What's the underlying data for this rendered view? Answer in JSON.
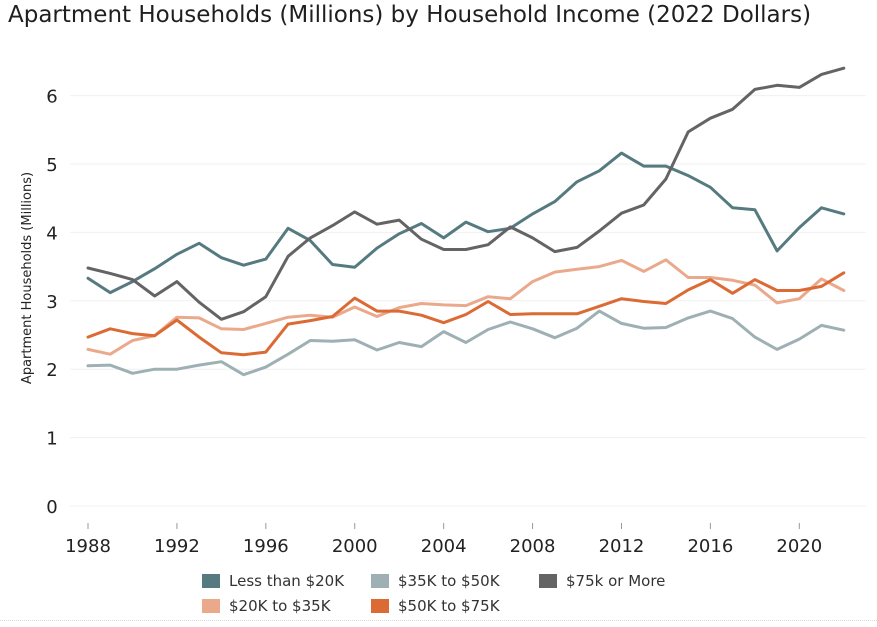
{
  "title": "Apartment Households (Millions) by Household Income (2022 Dollars)",
  "chart_data": {
    "type": "line",
    "title": "Apartment Households (Millions) by Household Income (2022 Dollars)",
    "xlabel": "",
    "ylabel": "Apartment Households (Millions)",
    "xlim": [
      1988,
      2023
    ],
    "ylim": [
      0,
      6.4
    ],
    "x_ticks": [
      1988,
      1992,
      1996,
      2000,
      2004,
      2008,
      2012,
      2016,
      2020
    ],
    "y_ticks": [
      0,
      1,
      2,
      3,
      4,
      5,
      6
    ],
    "grid": "horizontal",
    "legend_position": "bottom",
    "x": [
      1988,
      1989,
      1990,
      1991,
      1992,
      1993,
      1994,
      1995,
      1996,
      1997,
      1998,
      1999,
      2000,
      2001,
      2002,
      2003,
      2004,
      2005,
      2006,
      2007,
      2008,
      2009,
      2010,
      2011,
      2012,
      2013,
      2014,
      2015,
      2016,
      2017,
      2018,
      2019,
      2020,
      2021,
      2022,
      2023
    ],
    "series": [
      {
        "name": "Less than $20K",
        "color": "#557a80",
        "values": [
          3.33,
          3.12,
          3.28,
          3.47,
          3.68,
          3.84,
          3.63,
          3.52,
          3.61,
          4.06,
          3.88,
          3.53,
          3.49,
          3.77,
          3.98,
          4.13,
          3.92,
          4.15,
          4.01,
          4.06,
          4.27,
          4.45,
          4.74,
          4.9,
          5.16,
          4.97,
          4.97,
          4.83,
          4.66,
          4.36,
          4.33,
          3.73,
          4.07,
          4.36,
          4.27,
          null
        ]
      },
      {
        "name": "$35K to $50K",
        "color": "#9eb0b4",
        "values": [
          2.05,
          2.06,
          1.94,
          2.0,
          2.0,
          2.06,
          2.11,
          1.92,
          2.03,
          2.22,
          2.42,
          2.41,
          2.43,
          2.28,
          2.39,
          2.33,
          2.55,
          2.39,
          2.58,
          2.69,
          2.59,
          2.46,
          2.6,
          2.85,
          2.67,
          2.6,
          2.61,
          2.75,
          2.85,
          2.74,
          2.47,
          2.29,
          2.44,
          2.64,
          2.57,
          null
        ]
      },
      {
        "name": "$75k or More",
        "color": "#646464",
        "values": [
          3.48,
          3.4,
          3.31,
          3.07,
          3.28,
          2.98,
          2.73,
          2.84,
          3.06,
          3.65,
          3.92,
          4.1,
          4.3,
          4.12,
          4.18,
          3.9,
          3.75,
          3.75,
          3.82,
          4.08,
          3.92,
          3.72,
          3.78,
          4.02,
          4.28,
          4.4,
          4.78,
          5.47,
          5.67,
          5.8,
          6.09,
          6.15,
          6.12,
          6.31,
          6.4,
          null
        ]
      },
      {
        "name": "$20K to $35K",
        "color": "#eba98c",
        "values": [
          2.29,
          2.22,
          2.42,
          2.49,
          2.76,
          2.75,
          2.59,
          2.58,
          2.67,
          2.76,
          2.79,
          2.76,
          2.91,
          2.77,
          2.9,
          2.96,
          2.94,
          2.93,
          3.06,
          3.03,
          3.28,
          3.42,
          3.46,
          3.5,
          3.59,
          3.43,
          3.6,
          3.34,
          3.34,
          3.3,
          3.23,
          2.97,
          3.03,
          3.32,
          3.15,
          null
        ]
      },
      {
        "name": "$50K to $75K",
        "color": "#dc6a35",
        "values": [
          2.47,
          2.59,
          2.52,
          2.49,
          2.72,
          2.47,
          2.24,
          2.21,
          2.25,
          2.66,
          2.71,
          2.77,
          3.04,
          2.85,
          2.85,
          2.79,
          2.68,
          2.8,
          2.99,
          2.8,
          2.81,
          2.81,
          2.81,
          2.92,
          3.03,
          2.99,
          2.96,
          3.16,
          3.31,
          3.11,
          3.31,
          3.15,
          3.15,
          3.21,
          3.41,
          null
        ]
      }
    ]
  },
  "legend": {
    "items": [
      {
        "label": "Less than $20K",
        "color": "#557a80"
      },
      {
        "label": "$35K to $50K",
        "color": "#9eb0b4"
      },
      {
        "label": "$75k or More",
        "color": "#646464"
      },
      {
        "label": "$20K to $35K",
        "color": "#eba98c"
      },
      {
        "label": "$50K to $75K",
        "color": "#dc6a35"
      }
    ]
  }
}
